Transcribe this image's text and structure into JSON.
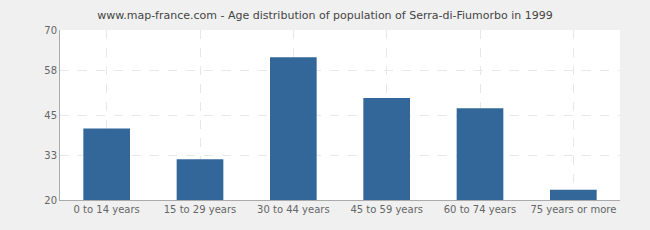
{
  "chart_data": {
    "type": "bar",
    "title": "www.map-france.com - Age distribution of population of Serra-di-Fiumorbo in 1999",
    "categories": [
      "0 to 14 years",
      "15 to 29 years",
      "30 to 44 years",
      "45 to 59 years",
      "60 to 74 years",
      "75 years or more"
    ],
    "values": [
      41,
      32,
      62,
      50,
      47,
      23
    ],
    "color": "#336699",
    "ylim": [
      20,
      70
    ],
    "yticks": [
      20,
      33,
      45,
      58,
      70
    ],
    "grid": true
  }
}
